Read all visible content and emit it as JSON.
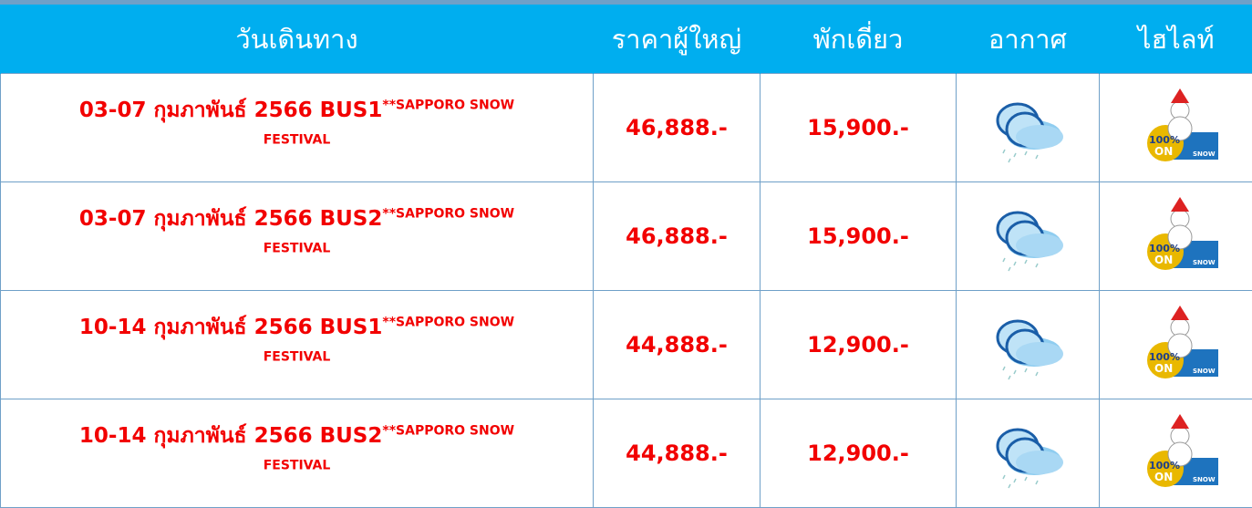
{
  "table": {
    "headers": [
      "วันเดินทาง",
      "ราคาผู้ใหญ่",
      "พักเดี่ยว",
      "อากาศ",
      "ไฮไลท์"
    ],
    "rows": [
      {
        "date": "03-07 กุมภาพันธ์ 2566 BUS1",
        "note": "**SAPPORO SNOW FESTIVAL",
        "adult": "46,888.-",
        "single": "15,900.-",
        "badge": [
          "100%",
          "ON",
          "SNOW"
        ]
      },
      {
        "date": "03-07 กุมภาพันธ์ 2566 BUS2",
        "note": "**SAPPORO SNOW FESTIVAL",
        "adult": "46,888.-",
        "single": "15,900.-",
        "badge": [
          "100%",
          "ON",
          "SNOW"
        ]
      },
      {
        "date": "10-14 กุมภาพันธ์ 2566 BUS1",
        "note": "**SAPPORO SNOW FESTIVAL",
        "adult": "44,888.-",
        "single": "12,900.-",
        "badge": [
          "100%",
          "ON",
          "SNOW"
        ]
      },
      {
        "date": "10-14 กุมภาพันธ์ 2566 BUS2",
        "note": "**SAPPORO SNOW FESTIVAL",
        "adult": "44,888.-",
        "single": "12,900.-",
        "badge": [
          "100%",
          "ON",
          "SNOW"
        ]
      }
    ]
  }
}
